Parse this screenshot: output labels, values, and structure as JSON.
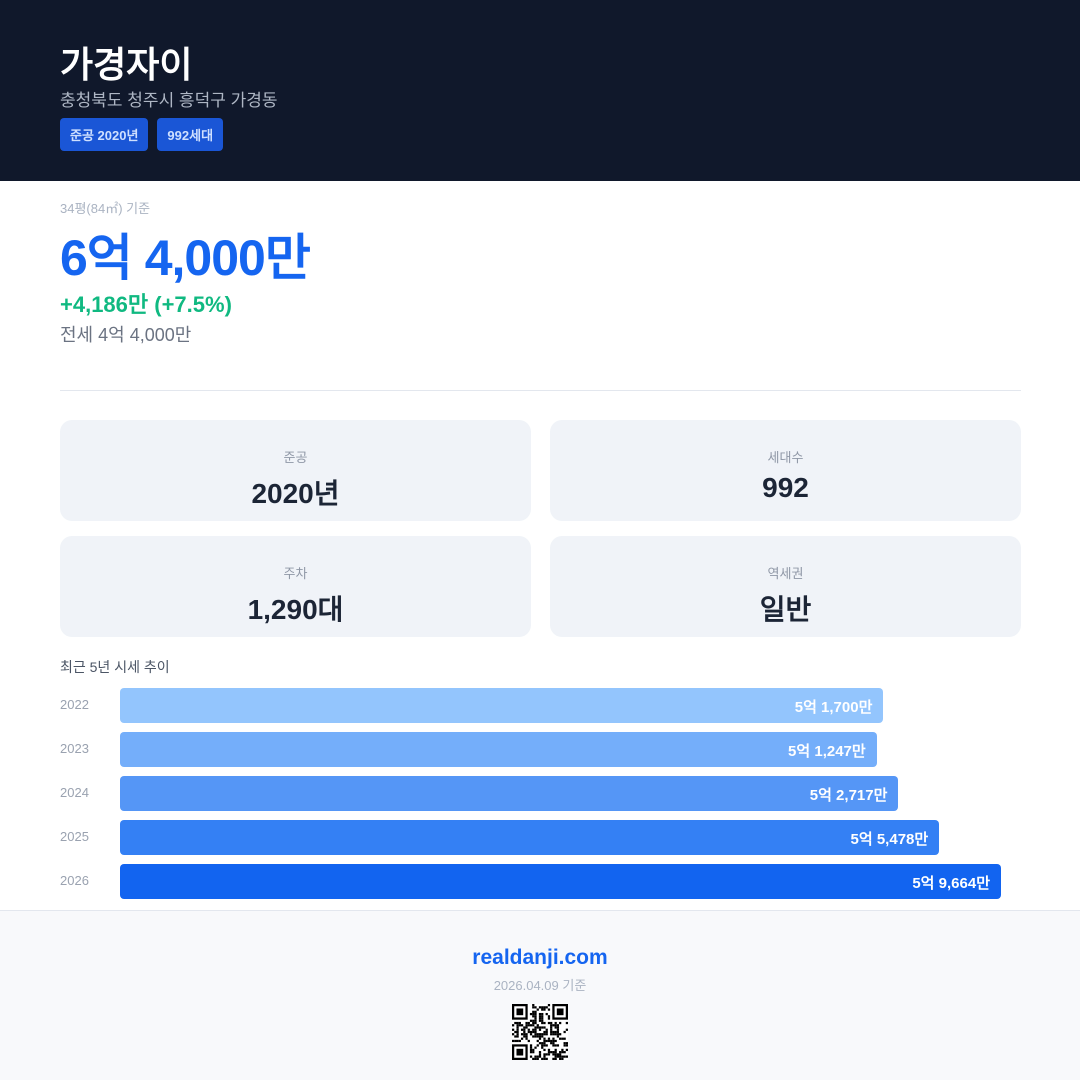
{
  "header": {
    "title": "가경자이",
    "address": "충청북도 청주시 흥덕구 가경동",
    "badges": [
      "준공 2020년",
      "992세대"
    ]
  },
  "price": {
    "basis": "34평(84㎡) 기준",
    "value": "6억 4,000만",
    "change": "+4,186만 (+7.5%)",
    "jeonse": "전세 4억 4,000만"
  },
  "stats": [
    {
      "label": "준공",
      "value": "2020년"
    },
    {
      "label": "세대수",
      "value": "992"
    },
    {
      "label": "주차",
      "value": "1,290대"
    },
    {
      "label": "역세권",
      "value": "일반"
    }
  ],
  "chart_data": {
    "type": "bar",
    "title": "최근 5년 시세 추이",
    "categories": [
      "2022",
      "2023",
      "2024",
      "2025",
      "2026"
    ],
    "values": [
      51700,
      51247,
      52717,
      55478,
      59664
    ],
    "value_labels": [
      "5억 1,700만",
      "5억 1,247만",
      "5억 2,717만",
      "5억 5,478만",
      "5억 9,664만"
    ],
    "colors": [
      "#93c5fd",
      "#74aefa",
      "#5596f6",
      "#3480f4",
      "#1264f0"
    ]
  },
  "footer": {
    "site": "realdanji.com",
    "date": "2026.04.09 기준"
  }
}
